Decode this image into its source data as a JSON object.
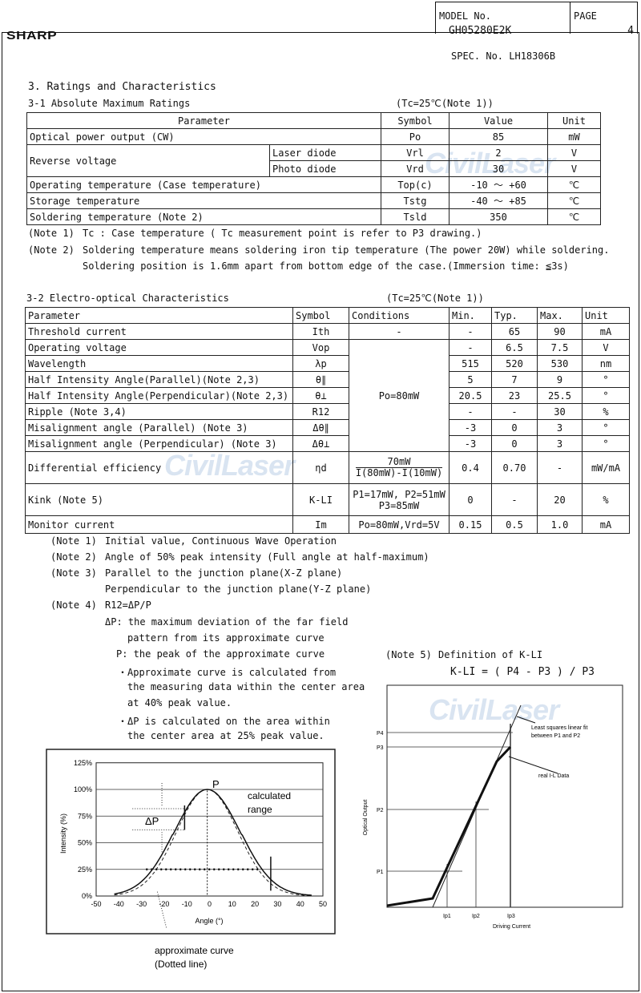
{
  "header": {
    "brand": "SHARP",
    "model_label": "MODEL No.",
    "model": "GH05280E2K",
    "page_label": "PAGE",
    "page": "4",
    "spec": "SPEC. No. LH18306B"
  },
  "watermark": "CivilLaser",
  "section_title": "3. Ratings and Characteristics",
  "abs_max": {
    "title": "3-1 Absolute Maximum Ratings",
    "condition": "(Tc=25℃(Note 1))",
    "headers": [
      "Parameter",
      "Symbol",
      "Value",
      "Unit"
    ],
    "rows": [
      {
        "param": "Optical power output (CW)",
        "symbol": "Po",
        "value": "85",
        "unit": "mW"
      },
      {
        "param": "Reverse voltage",
        "sub": "Laser diode",
        "symbol": "Vrl",
        "value": "2",
        "unit": "V"
      },
      {
        "sub": "Photo diode",
        "symbol": "Vrd",
        "value": "30",
        "unit": "V"
      },
      {
        "param": "Operating temperature (Case temperature)",
        "symbol": "Top(c)",
        "value": "-10 ～ +60",
        "unit": "℃"
      },
      {
        "param": "Storage temperature",
        "symbol": "Tstg",
        "value": "-40 ～ +85",
        "unit": "℃"
      },
      {
        "param": "Soldering temperature (Note 2)",
        "symbol": "Tsld",
        "value": "350",
        "unit": "℃"
      }
    ],
    "notes": [
      {
        "label": "(Note 1)",
        "text": "Tc : Case temperature ( Tc measurement point is refer to P3 drawing.)"
      },
      {
        "label": "(Note 2)",
        "text": "Soldering temperature means soldering iron tip temperature (The power 20W) while soldering."
      },
      {
        "label": "",
        "text": "Soldering position is 1.6mm apart from bottom edge of the case.(Immersion time: ≦3s)"
      }
    ]
  },
  "eo": {
    "title": "3-2 Electro-optical Characteristics",
    "condition": "(Tc=25℃(Note 1))",
    "headers": [
      "Parameter",
      "Symbol",
      "Conditions",
      "Min.",
      "Typ.",
      "Max.",
      "Unit"
    ],
    "rows": [
      {
        "param": "Threshold current",
        "symbol": "Ith",
        "cond": "-",
        "min": "-",
        "typ": "65",
        "max": "90",
        "unit": "mA"
      },
      {
        "param": "Operating voltage",
        "symbol": "Vop",
        "min": "-",
        "typ": "6.5",
        "max": "7.5",
        "unit": "V"
      },
      {
        "param": "Wavelength",
        "symbol": "λp",
        "min": "515",
        "typ": "520",
        "max": "530",
        "unit": "nm"
      },
      {
        "param": "Half Intensity Angle(Parallel)(Note 2,3)",
        "symbol": "θ∥",
        "cond": "Po=80mW",
        "min": "5",
        "typ": "7",
        "max": "9",
        "unit": "°"
      },
      {
        "param": "Half Intensity Angle(Perpendicular)(Note 2,3)",
        "symbol": "θ⊥",
        "min": "20.5",
        "typ": "23",
        "max": "25.5",
        "unit": "°"
      },
      {
        "param": "Ripple (Note 3,4)",
        "symbol": "R12",
        "min": "-",
        "typ": "-",
        "max": "30",
        "unit": "%"
      },
      {
        "param": "Misalignment angle (Parallel) (Note 3)",
        "symbol": "Δθ∥",
        "min": "-3",
        "typ": "0",
        "max": "3",
        "unit": "°"
      },
      {
        "param": "Misalignment angle (Perpendicular) (Note 3)",
        "symbol": "Δθ⊥",
        "min": "-3",
        "typ": "0",
        "max": "3",
        "unit": "°"
      },
      {
        "param": "Differential efficiency",
        "symbol": "ηd",
        "cond_num": "70mW",
        "cond_den": "I(80mW)-I(10mW)",
        "min": "0.4",
        "typ": "0.70",
        "max": "-",
        "unit": "mW/mA"
      },
      {
        "param": "Kink (Note 5)",
        "symbol": "K-LI",
        "cond_l1": "P1=17mW, P2=51mW",
        "cond_l2": "P3=85mW",
        "min": "0",
        "typ": "-",
        "max": "20",
        "unit": "%"
      },
      {
        "param": "Monitor current",
        "symbol": "Im",
        "cond": "Po=80mW,Vrd=5V",
        "min": "0.15",
        "typ": "0.5",
        "max": "1.0",
        "unit": "mA"
      }
    ],
    "notes": [
      {
        "label": "(Note 1)",
        "text": "Initial value, Continuous Wave Operation"
      },
      {
        "label": "(Note 2)",
        "text": "Angle of 50% peak intensity (Full angle at half-maximum)"
      },
      {
        "label": "(Note 3)",
        "text": "Parallel to the junction plane(X-Z plane)"
      },
      {
        "label": "",
        "text": "Perpendicular to the junction plane(Y-Z plane)"
      },
      {
        "label": "(Note 4)",
        "text": "R12=ΔP/P"
      }
    ],
    "note4_lines": [
      "ΔP:  the maximum deviation of the far field",
      "pattern from its approximate curve",
      "P:  the peak of the approximate curve",
      "・Approximate curve is calculated from",
      "the measuring data within the center area",
      "at 40% peak value.",
      "・ΔP is calculated on the area within",
      "the center area at 25% peak value."
    ],
    "note5": {
      "label": "(Note 5)",
      "title": "Definition of K-LI",
      "formula": "K-LI = ( P4 - P3 ) / P3"
    }
  },
  "far_field_chart": {
    "ylabel": "Intensity (%)",
    "xlabel": "Angle (°)",
    "yticks": [
      "0%",
      "25%",
      "50%",
      "75%",
      "100%",
      "125%"
    ],
    "xticks": [
      "-50",
      "-40",
      "-30",
      "-20",
      "-10",
      "0",
      "10",
      "20",
      "30",
      "40",
      "50"
    ],
    "peak_label": "P",
    "delta_label": "ΔP",
    "range_label_1": "calculated",
    "range_label_2": "range",
    "approx_label_1": "approximate curve",
    "approx_label_2": "(Dotted line)"
  },
  "kink_chart": {
    "ylabel": "Optical Output",
    "xlabel": "Driving Current",
    "ylevels": [
      "P1",
      "P2",
      "P3",
      "P4"
    ],
    "xlevels": [
      "Ip1",
      "Ip2",
      "Ip3"
    ],
    "fit_label_1": "Least squares linear fit",
    "fit_label_2": "between P1 and P2",
    "data_label": "real I-L Data"
  }
}
